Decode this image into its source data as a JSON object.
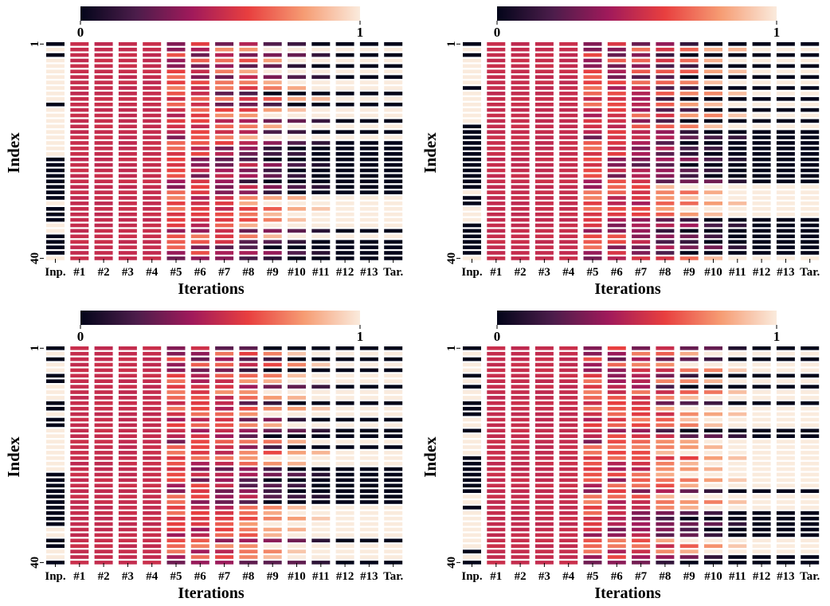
{
  "colorscale": {
    "min_label": "0",
    "max_label": "1",
    "stops": [
      "#03051a",
      "#4c1d4b",
      "#a11a5b",
      "#e83f3f",
      "#f69c73",
      "#faebdd"
    ]
  },
  "chart_data": [
    {
      "type": "heatmap",
      "xlabel": "Iterations",
      "ylabel": "Index",
      "x_tick_labels": [
        "Inp.",
        "#1",
        "#2",
        "#3",
        "#4",
        "#5",
        "#6",
        "#7",
        "#8",
        "#9",
        "#10",
        "#11",
        "#12",
        "#13",
        "Tar."
      ],
      "y_tick_labels": [
        "1",
        "40"
      ],
      "rows": 40,
      "vmin": 0,
      "vmax": 1,
      "input_bits": [
        0,
        1,
        0,
        1,
        1,
        1,
        1,
        1,
        1,
        1,
        1,
        0,
        1,
        1,
        1,
        1,
        1,
        1,
        1,
        1,
        1,
        0,
        0,
        0,
        0,
        0,
        0,
        0,
        0,
        1,
        0,
        0,
        0,
        1,
        1,
        0,
        0,
        0,
        0,
        1
      ],
      "target_bits": [
        0,
        1,
        0,
        1,
        0,
        1,
        0,
        1,
        1,
        0,
        1,
        0,
        1,
        1,
        0,
        1,
        0,
        1,
        0,
        0,
        0,
        0,
        0,
        0,
        0,
        0,
        0,
        0,
        1,
        1,
        1,
        1,
        1,
        1,
        0,
        1,
        0,
        0,
        0,
        0
      ],
      "converge_iteration": [
        11,
        9,
        12,
        10,
        11,
        9,
        12,
        10,
        11,
        9,
        12,
        10,
        11,
        9,
        12,
        10,
        11,
        9,
        12,
        10,
        11,
        9,
        12,
        10,
        11,
        9,
        12,
        10,
        11,
        9,
        12,
        10,
        11,
        9,
        12,
        10,
        11,
        9,
        12,
        10
      ]
    },
    {
      "type": "heatmap",
      "xlabel": "Iterations",
      "ylabel": "Index",
      "x_tick_labels": [
        "Inp.",
        "#1",
        "#2",
        "#3",
        "#4",
        "#5",
        "#6",
        "#7",
        "#8",
        "#9",
        "#10",
        "#11",
        "#12",
        "#13",
        "Tar."
      ],
      "y_tick_labels": [
        "1",
        "40"
      ],
      "rows": 40,
      "vmin": 0,
      "vmax": 1,
      "input_bits": [
        0,
        1,
        0,
        1,
        1,
        1,
        1,
        1,
        0,
        1,
        1,
        1,
        1,
        1,
        1,
        0,
        0,
        0,
        0,
        0,
        0,
        0,
        0,
        0,
        0,
        0,
        0,
        1,
        0,
        0,
        1,
        1,
        1,
        0,
        0,
        0,
        0,
        0,
        0,
        1
      ],
      "target_bits": [
        0,
        1,
        0,
        1,
        0,
        1,
        0,
        1,
        0,
        1,
        0,
        1,
        0,
        1,
        0,
        1,
        0,
        0,
        0,
        0,
        0,
        0,
        0,
        0,
        0,
        0,
        1,
        1,
        1,
        1,
        1,
        1,
        0,
        0,
        0,
        0,
        0,
        0,
        0,
        1
      ],
      "converge_iteration": [
        10,
        12,
        9,
        11,
        10,
        12,
        9,
        11,
        10,
        12,
        9,
        11,
        10,
        12,
        9,
        11,
        10,
        12,
        9,
        11,
        10,
        12,
        9,
        11,
        10,
        12,
        9,
        11,
        10,
        12,
        9,
        11,
        10,
        12,
        9,
        11,
        10,
        12,
        9,
        11
      ]
    },
    {
      "type": "heatmap",
      "xlabel": "Iterations",
      "ylabel": "Index",
      "x_tick_labels": [
        "Inp.",
        "#1",
        "#2",
        "#3",
        "#4",
        "#5",
        "#6",
        "#7",
        "#8",
        "#9",
        "#10",
        "#11",
        "#12",
        "#13",
        "Tar."
      ],
      "y_tick_labels": [
        "1",
        "40"
      ],
      "rows": 40,
      "vmin": 0,
      "vmax": 1,
      "input_bits": [
        0,
        1,
        0,
        1,
        1,
        0,
        0,
        1,
        1,
        1,
        0,
        0,
        1,
        0,
        0,
        1,
        1,
        1,
        1,
        1,
        1,
        1,
        1,
        0,
        0,
        0,
        0,
        0,
        0,
        0,
        0,
        0,
        0,
        1,
        1,
        0,
        0,
        1,
        1,
        0
      ],
      "target_bits": [
        0,
        1,
        0,
        1,
        0,
        1,
        1,
        0,
        1,
        1,
        0,
        1,
        1,
        0,
        1,
        0,
        0,
        1,
        0,
        1,
        1,
        1,
        0,
        0,
        0,
        0,
        0,
        0,
        0,
        1,
        1,
        1,
        1,
        1,
        1,
        0,
        1,
        1,
        1,
        0
      ],
      "converge_iteration": [
        9,
        11,
        10,
        12,
        9,
        11,
        10,
        12,
        9,
        11,
        10,
        12,
        9,
        11,
        10,
        12,
        9,
        11,
        10,
        12,
        9,
        11,
        10,
        12,
        9,
        11,
        10,
        12,
        9,
        11,
        10,
        12,
        9,
        11,
        10,
        12,
        9,
        11,
        10,
        12
      ]
    },
    {
      "type": "heatmap",
      "xlabel": "Iterations",
      "ylabel": "Index",
      "x_tick_labels": [
        "Inp.",
        "#1",
        "#2",
        "#3",
        "#4",
        "#5",
        "#6",
        "#7",
        "#8",
        "#9",
        "#10",
        "#11",
        "#12",
        "#13",
        "Tar."
      ],
      "y_tick_labels": [
        "1",
        "40"
      ],
      "rows": 40,
      "vmin": 0,
      "vmax": 1,
      "input_bits": [
        0,
        1,
        0,
        1,
        1,
        0,
        1,
        0,
        1,
        1,
        0,
        0,
        0,
        1,
        1,
        0,
        1,
        1,
        1,
        1,
        0,
        0,
        0,
        0,
        0,
        0,
        0,
        1,
        1,
        0,
        1,
        1,
        1,
        1,
        1,
        1,
        1,
        0,
        1,
        0
      ],
      "target_bits": [
        0,
        1,
        0,
        1,
        1,
        0,
        1,
        0,
        1,
        1,
        0,
        1,
        1,
        1,
        1,
        0,
        0,
        1,
        1,
        1,
        1,
        1,
        1,
        1,
        1,
        1,
        0,
        1,
        1,
        1,
        0,
        0,
        0,
        0,
        0,
        1,
        1,
        1,
        0,
        0
      ],
      "converge_iteration": [
        12,
        10,
        11,
        9,
        12,
        10,
        11,
        9,
        12,
        10,
        11,
        9,
        12,
        10,
        11,
        9,
        12,
        10,
        11,
        9,
        12,
        10,
        11,
        9,
        12,
        10,
        11,
        9,
        12,
        10,
        11,
        9,
        12,
        10,
        11,
        9,
        12,
        10,
        11,
        9
      ]
    }
  ]
}
